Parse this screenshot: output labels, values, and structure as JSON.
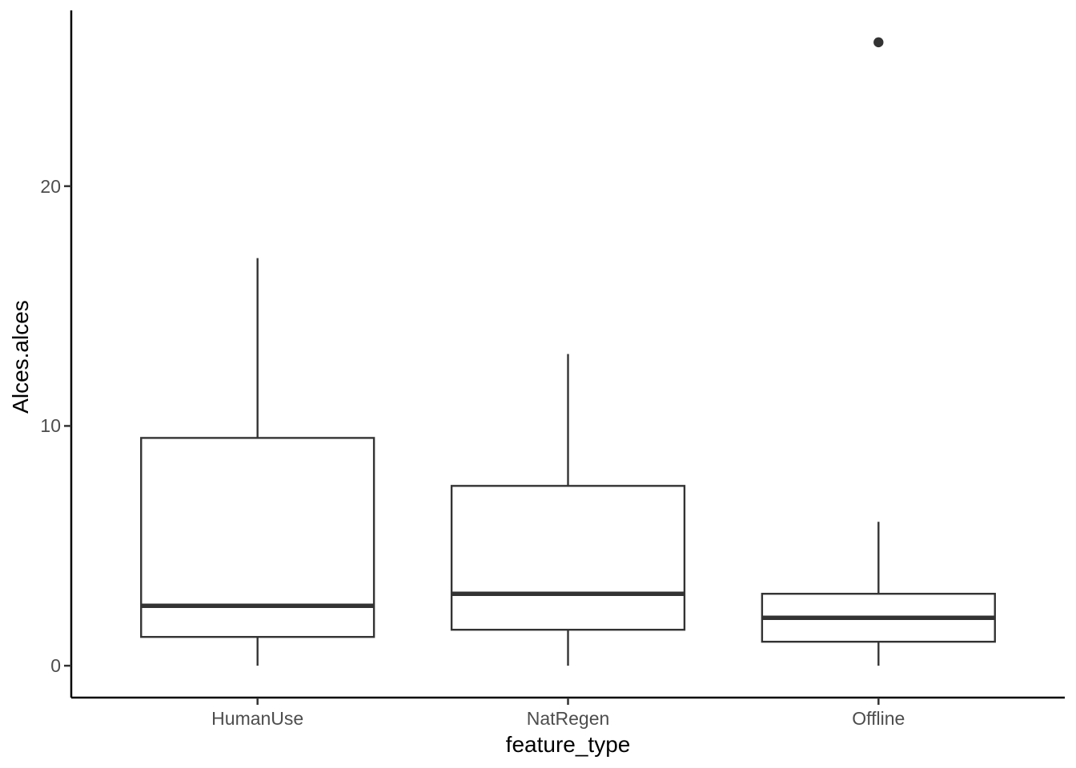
{
  "chart_data": {
    "type": "boxplot",
    "title": "",
    "xlabel": "feature_type",
    "ylabel": "Alces.alces",
    "categories": [
      "HumanUse",
      "NatRegen",
      "Offline"
    ],
    "yticks": [
      0,
      10,
      20
    ],
    "ylim": [
      -1.33,
      27.33
    ],
    "grid": "off",
    "legend": "none",
    "boxes": [
      {
        "category": "HumanUse",
        "whisker_low": 0,
        "q1": 1.2,
        "median": 2.5,
        "q3": 9.5,
        "whisker_high": 17,
        "outliers": []
      },
      {
        "category": "NatRegen",
        "whisker_low": 0,
        "q1": 1.5,
        "median": 3,
        "q3": 7.5,
        "whisker_high": 13,
        "outliers": []
      },
      {
        "category": "Offline",
        "whisker_low": 0,
        "q1": 1,
        "median": 2,
        "q3": 3,
        "whisker_high": 6,
        "outliers": [
          26
        ]
      }
    ],
    "colors": {
      "background": "#ffffff",
      "box_stroke": "#333333",
      "box_fill": "#ffffff",
      "median_stroke": "#333333",
      "outlier_fill": "#333333",
      "axis_line": "#000000",
      "tick_mark": "#333333",
      "tick_label": "#4d4d4d",
      "axis_title": "#000000"
    }
  }
}
